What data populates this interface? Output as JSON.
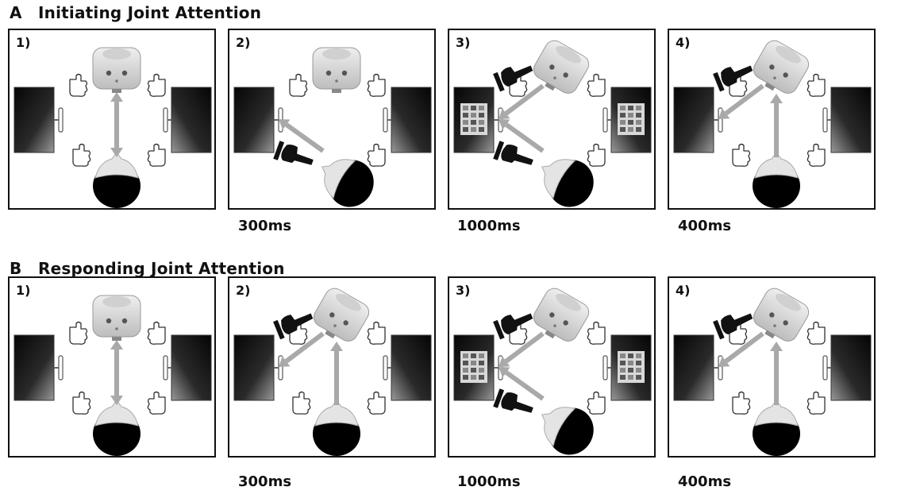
{
  "sections": [
    {
      "letter": "A",
      "title": "Initiating Joint Attention",
      "panels": [
        {
          "number": "1)",
          "robot_gaze": "person",
          "robot_pointing": "none",
          "person_gaze": "robot",
          "person_pointing": "none",
          "screens": "blank"
        },
        {
          "number": "2)",
          "robot_gaze": "person",
          "robot_pointing": "none",
          "person_gaze": "left-screen",
          "person_pointing": "left",
          "screens": "blank"
        },
        {
          "number": "3)",
          "robot_gaze": "left-screen",
          "robot_pointing": "left",
          "person_gaze": "left-screen",
          "person_pointing": "left",
          "screens": "image"
        },
        {
          "number": "4)",
          "robot_gaze": "left-screen",
          "robot_pointing": "left",
          "person_gaze": "robot",
          "person_pointing": "none",
          "screens": "blank"
        }
      ],
      "durations": [
        "300ms",
        "1000ms",
        "400ms"
      ]
    },
    {
      "letter": "B",
      "title": "Responding Joint Attention",
      "panels": [
        {
          "number": "1)",
          "robot_gaze": "person",
          "robot_pointing": "none",
          "person_gaze": "robot",
          "person_pointing": "none",
          "screens": "blank"
        },
        {
          "number": "2)",
          "robot_gaze": "left-screen",
          "robot_pointing": "left",
          "person_gaze": "robot",
          "person_pointing": "none",
          "screens": "blank"
        },
        {
          "number": "3)",
          "robot_gaze": "left-screen",
          "robot_pointing": "left",
          "person_gaze": "left-screen",
          "person_pointing": "left",
          "screens": "image"
        },
        {
          "number": "4)",
          "robot_gaze": "left-screen",
          "robot_pointing": "left",
          "person_gaze": "robot",
          "person_pointing": "none",
          "screens": "blank"
        }
      ],
      "durations": [
        "300ms",
        "1000ms",
        "400ms"
      ]
    }
  ],
  "colors": {
    "arrow": "#a9a9a9",
    "border": "#111111",
    "hand_dark": "#111111"
  },
  "icons": [
    "robot-head-icon",
    "human-head-icon",
    "monitor-icon",
    "hand-outline-icon",
    "pointing-hand-icon",
    "gaze-arrow-icon"
  ]
}
